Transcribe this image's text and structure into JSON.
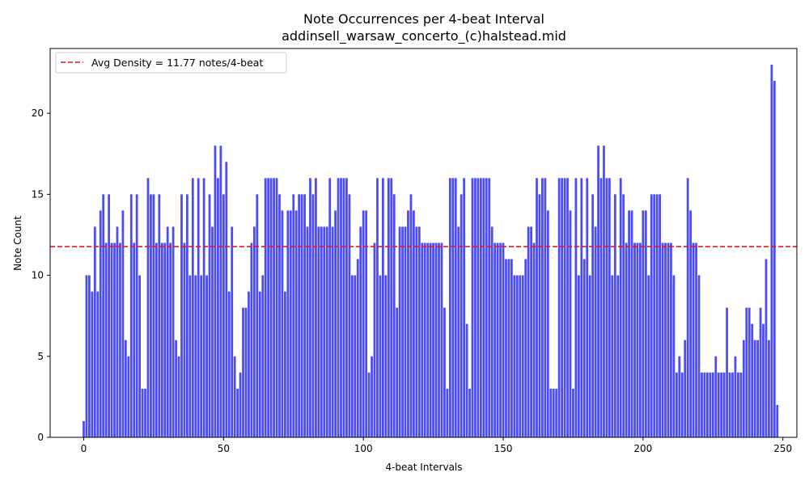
{
  "chart_data": {
    "type": "bar",
    "title": "Note Occurrences per 4-beat Interval",
    "subtitle": "addinsell_warsaw_concerto_(c)halstead.mid",
    "xlabel": "4-beat Intervals",
    "ylabel": "Note Count",
    "xlim": [
      -12,
      255
    ],
    "ylim": [
      0,
      24
    ],
    "x_ticks": [
      0,
      50,
      100,
      150,
      200,
      250
    ],
    "y_ticks": [
      0,
      5,
      10,
      15,
      20
    ],
    "bar_color": "#4c4cf5",
    "grid": false,
    "legend_position": "top-left",
    "avg_line": {
      "value": 11.77,
      "label": "Avg Density = 11.77 notes/4-beat",
      "color": "#e31a1c",
      "style": "dashed"
    },
    "values": [
      1,
      10,
      10,
      9,
      13,
      9,
      14,
      15,
      12,
      15,
      12,
      12,
      13,
      12,
      14,
      6,
      5,
      15,
      12,
      15,
      10,
      3,
      3,
      16,
      15,
      15,
      12,
      15,
      12,
      12,
      13,
      12,
      13,
      6,
      5,
      15,
      12,
      15,
      10,
      16,
      10,
      16,
      10,
      16,
      10,
      15,
      13,
      18,
      16,
      18,
      15,
      17,
      9,
      13,
      5,
      3,
      4,
      8,
      8,
      9,
      12,
      13,
      15,
      9,
      10,
      16,
      16,
      16,
      16,
      16,
      15,
      14,
      9,
      14,
      14,
      15,
      14,
      15,
      15,
      15,
      13,
      16,
      15,
      16,
      13,
      13,
      13,
      13,
      16,
      13,
      14,
      16,
      16,
      16,
      16,
      15,
      10,
      10,
      11,
      13,
      14,
      14,
      4,
      5,
      12,
      16,
      10,
      16,
      10,
      16,
      16,
      15,
      8,
      13,
      13,
      13,
      14,
      15,
      14,
      13,
      13,
      12,
      12,
      12,
      12,
      12,
      12,
      12,
      12,
      8,
      3,
      16,
      16,
      16,
      13,
      15,
      16,
      7,
      3,
      16,
      16,
      16,
      16,
      16,
      16,
      16,
      13,
      12,
      12,
      12,
      12,
      11,
      11,
      11,
      10,
      10,
      10,
      10,
      11,
      13,
      13,
      12,
      16,
      15,
      16,
      16,
      14,
      3,
      3,
      3,
      16,
      16,
      16,
      16,
      14,
      3,
      16,
      10,
      16,
      11,
      16,
      10,
      15,
      13,
      18,
      16,
      18,
      16,
      16,
      10,
      15,
      10,
      16,
      15,
      12,
      14,
      14,
      12,
      12,
      12,
      14,
      14,
      10,
      15,
      15,
      15,
      15,
      12,
      12,
      12,
      12,
      10,
      4,
      5,
      4,
      6,
      16,
      14,
      12,
      12,
      10,
      4,
      4,
      4,
      4,
      4,
      5,
      4,
      4,
      4,
      8,
      4,
      4,
      5,
      4,
      4,
      6,
      8,
      8,
      7,
      6,
      6,
      8,
      7,
      11,
      6,
      23,
      22,
      2
    ]
  }
}
